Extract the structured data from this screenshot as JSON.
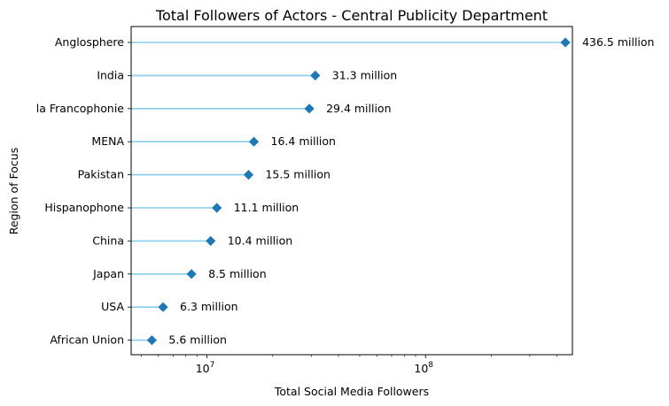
{
  "chart_data": {
    "type": "lollipop",
    "title": "Total Followers of Actors - Central Publicity Department",
    "xlabel": "Total Social Media Followers",
    "ylabel": "Region of Focus",
    "x_scale": "log",
    "xlim": [
      4500000,
      470000000
    ],
    "grid": false,
    "legend": "none",
    "colors": {
      "marker": "#1f77b4",
      "stem": "#87ceeb"
    },
    "x_ticks": [
      {
        "value": 10000000,
        "base": "10",
        "exp": "7"
      },
      {
        "value": 100000000,
        "base": "10",
        "exp": "8"
      }
    ],
    "categories": [
      "Anglosphere",
      "India",
      "la Francophonie",
      "MENA",
      "Pakistan",
      "Hispanophone",
      "China",
      "Japan",
      "USA",
      "African Union"
    ],
    "values": [
      436500000,
      31300000,
      29400000,
      16400000,
      15500000,
      11100000,
      10400000,
      8500000,
      6300000,
      5600000
    ],
    "labels": [
      "436.5 million",
      "31.3 million",
      "29.4 million",
      "16.4 million",
      "15.5 million",
      "11.1 million",
      "10.4 million",
      "8.5 million",
      "6.3 million",
      "5.6 million"
    ]
  }
}
